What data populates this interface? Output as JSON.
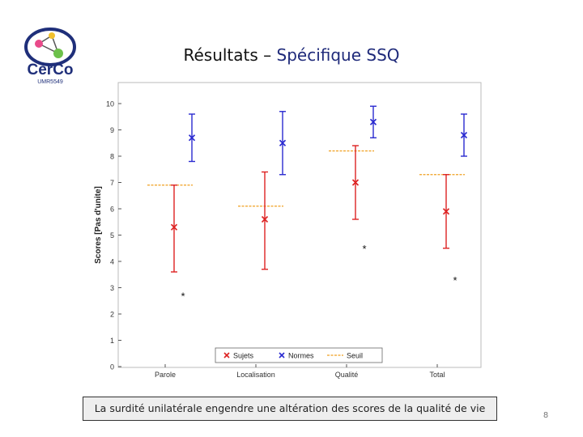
{
  "slide": {
    "title_main": "Résultats – ",
    "title_accent": "Spécifique SSQ",
    "caption": "La surdité unilatérale engendre une altération des scores de la qualité de vie",
    "page_number": "8"
  },
  "logo": {
    "name": "CerCo",
    "lab": "UMR5549"
  },
  "chart_data": {
    "type": "scatter",
    "categories": [
      "Parole",
      "Localisation",
      "Qualité",
      "Total"
    ],
    "ylabel": "Scores [Pas d'unite]",
    "xlabel": "",
    "ylim": [
      0,
      10
    ],
    "yticks": [
      0,
      1,
      2,
      3,
      4,
      5,
      6,
      7,
      8,
      9,
      10
    ],
    "legend_position": "bottom-center",
    "grid": false,
    "series": [
      {
        "name": "Sujets",
        "color": "#dd2222",
        "marker": "x",
        "values": [
          5.3,
          5.6,
          7.0,
          5.9
        ],
        "lower": [
          3.6,
          3.7,
          5.6,
          4.5
        ],
        "upper": [
          6.9,
          7.4,
          8.4,
          7.3
        ]
      },
      {
        "name": "Normes",
        "color": "#2a2ad0",
        "marker": "x",
        "values": [
          8.7,
          8.5,
          9.3,
          8.8
        ],
        "lower": [
          7.8,
          7.3,
          8.7,
          8.0
        ],
        "upper": [
          9.6,
          9.7,
          9.9,
          9.6
        ]
      },
      {
        "name": "Seuil",
        "color": "#f0a020",
        "marker": "dashed",
        "values": [
          6.9,
          6.1,
          8.2,
          7.3
        ]
      }
    ],
    "annotations": [
      {
        "text": "*",
        "category": "Parole",
        "y": 2.7
      },
      {
        "text": "*",
        "category": "Qualité",
        "y": 4.5
      },
      {
        "text": "*",
        "category": "Total",
        "y": 3.3
      }
    ]
  }
}
